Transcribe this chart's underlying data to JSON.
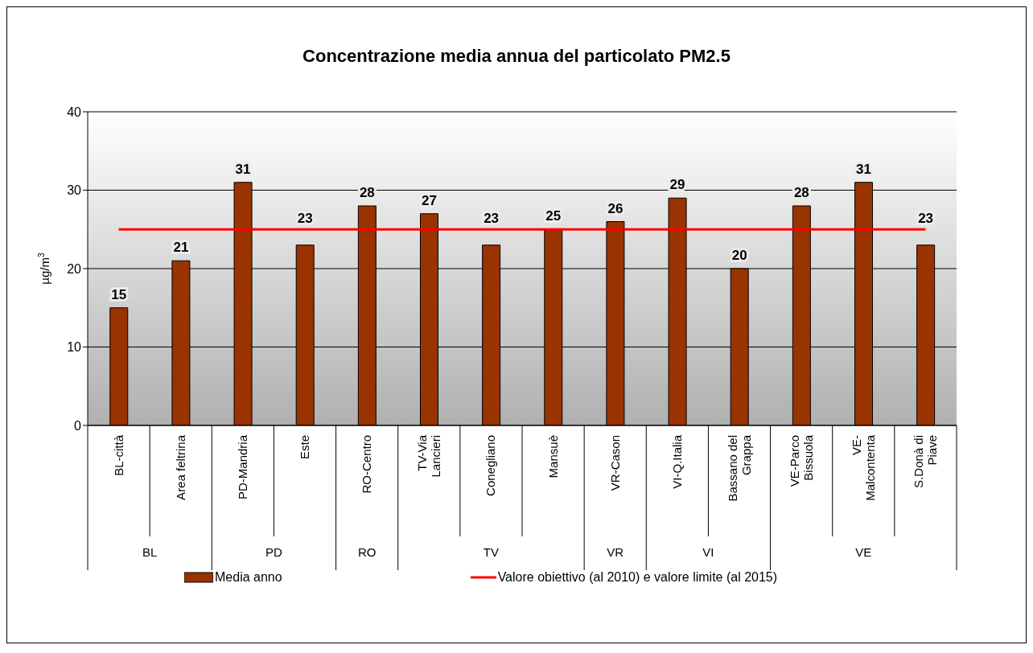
{
  "chart_data": {
    "type": "bar",
    "title": "Concentrazione media annua del particolato PM2.5",
    "ylabel": "µg/m$^{3}$",
    "categories": [
      "BL-città",
      "Area feltrina",
      "PD-Mandria",
      "Este",
      "RO-Centro",
      "TV-Via Lancieri",
      "Conegliano",
      "Mansuè",
      "VR-Cason",
      "VI-Q.Italia",
      "Bassano del Grappa",
      "VE-Parco Bissuola",
      "VE-Malcontenta",
      "S.Donà di Piave"
    ],
    "series": [
      {
        "name": "Media anno",
        "color": "#993300",
        "values": [
          15,
          21,
          31,
          23,
          28,
          27,
          23,
          25,
          26,
          29,
          20,
          28,
          31,
          23
        ],
        "value_labels": [
          "15",
          "21",
          "31",
          "23",
          "28",
          "27",
          "23",
          "25",
          "26",
          "29",
          "20",
          "28",
          "31",
          "23"
        ]
      },
      {
        "name": "Valore obiettivo (al 2010) e valore limite (al 2015)",
        "type": "line",
        "color": "#ff0000",
        "values": [
          25,
          25,
          25,
          25,
          25,
          25,
          25,
          25,
          25,
          25,
          25,
          25,
          25,
          25
        ]
      }
    ],
    "annotations": [
      "BL",
      "PD",
      "RO",
      "TV",
      "VR",
      "VI",
      "VE"
    ],
    "ylim": [
      0,
      40
    ],
    "yticks": [
      0,
      10,
      20,
      30,
      40
    ],
    "grid": "y",
    "legend": "bottom"
  }
}
